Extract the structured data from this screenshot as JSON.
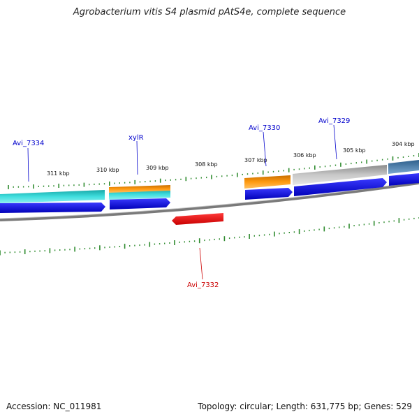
{
  "title": "Agrobacterium vitis S4 plasmid pAtS4e, complete sequence",
  "footer": {
    "accession": "Accession: NC_011981",
    "summary": "Topology: circular; Length: 631,775 bp; Genes: 529"
  },
  "scale_labels": [
    "311 kbp",
    "310 kbp",
    "309 kbp",
    "308 kbp",
    "307 kbp",
    "306 kbp",
    "305 kbp",
    "304 kbp"
  ],
  "gene_labels": [
    "Avi_7334",
    "xylR",
    "Avi_7330",
    "Avi_7329",
    "Avi_7332"
  ],
  "colors": {
    "backbone": "#7a7a7a",
    "ticks": "#2e8b2e",
    "cds_forward": "#0000e0",
    "cds_reverse": "#ff0000",
    "cyan_feature": "#23c6c6",
    "orange_feature": "#f08c00",
    "grey_feature": "#bdbdbd",
    "steel_feature": "#4a7fb0",
    "label_blue": "#0000cc",
    "label_red": "#cc0000"
  }
}
